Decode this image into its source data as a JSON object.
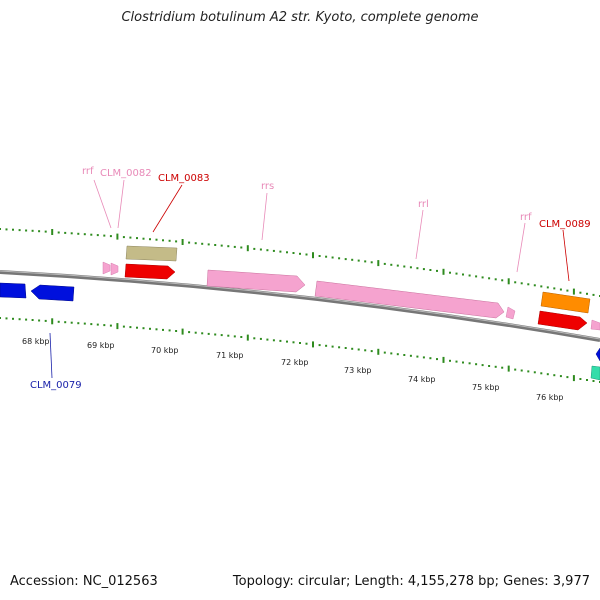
{
  "title": "Clostridium botulinum A2 str. Kyoto, complete genome",
  "footer": {
    "accession": "Accession: NC_012563",
    "topology": "Topology: circular; Length: 4,155,278 bp; Genes: 3,977"
  },
  "colors": {
    "backbone": "#8a8a8a",
    "tick": "#2e8b1e",
    "cds_red": "#ee0000",
    "cds_blue": "#0010dd",
    "rna_pink": "#f5a3cf",
    "khaki": "#c4bb88",
    "orange": "#ff8c00",
    "teal": "#33ddaa",
    "label_red": "#cc0000",
    "label_pink": "#e88ab8",
    "label_blue": "#1a22aa"
  },
  "kbp_labels": [
    "68 kbp",
    "69 kbp",
    "70 kbp",
    "71 kbp",
    "72 kbp",
    "73 kbp",
    "74 kbp",
    "75 kbp",
    "76 kbp"
  ],
  "feature_labels": {
    "rrf_1": "rrf",
    "clm_0082": "CLM_0082",
    "clm_0083": "CLM_0083",
    "rrs": "rrs",
    "rrl": "rrl",
    "rrf_2": "rrf",
    "clm_0089": "CLM_0089",
    "clm_0079": "CLM_0079"
  }
}
